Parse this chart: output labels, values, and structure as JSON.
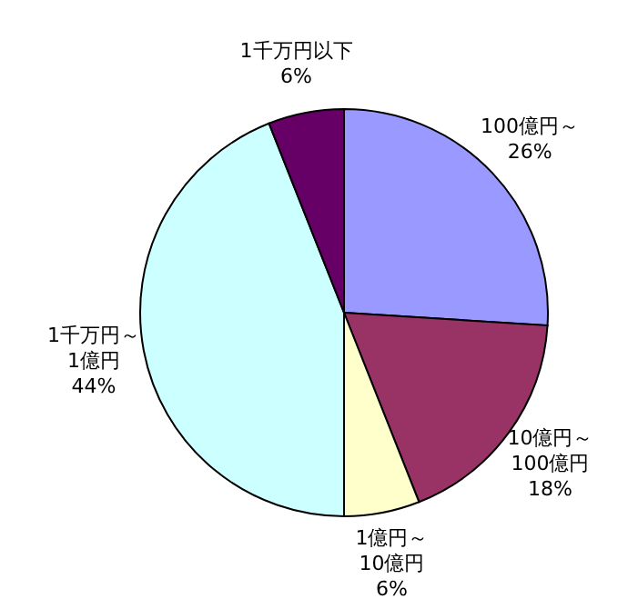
{
  "chart_data": {
    "type": "pie",
    "categories": [
      "100億円～",
      "10億円～\n100億円",
      "1億円～\n10億円",
      "1千万円～\n1億円",
      "1千万円以下"
    ],
    "values": [
      26,
      18,
      6,
      44,
      6
    ],
    "value_labels": [
      "26%",
      "18%",
      "6%",
      "44%",
      "6%"
    ],
    "colors": [
      "#9999ff",
      "#993366",
      "#ffffcc",
      "#ccffff",
      "#660066"
    ]
  }
}
